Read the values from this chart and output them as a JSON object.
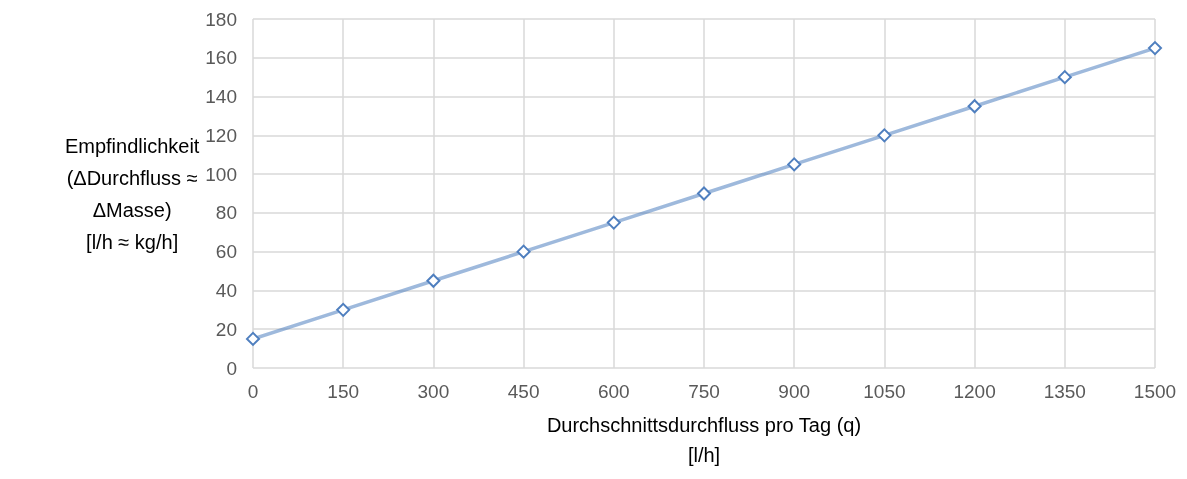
{
  "chart_data": {
    "type": "line",
    "xlabel": "Durchschnittsdurchfluss pro Tag (q)\n[l/h]",
    "ylabel": "Empfindlichkeit\n(ΔDurchfluss ≈\nΔMasse)\n[l/h ≈ kg/h]",
    "x": [
      0,
      150,
      300,
      450,
      600,
      750,
      900,
      1050,
      1200,
      1350,
      1500
    ],
    "series": [
      {
        "color": "#4f7fbf",
        "values": [
          15,
          30,
          45,
          60,
          75,
          90,
          105,
          120,
          135,
          150,
          165
        ]
      }
    ],
    "xlim": [
      0,
      1500
    ],
    "xticks": [
      0,
      150,
      300,
      450,
      600,
      750,
      900,
      1050,
      1200,
      1350,
      1500
    ],
    "ylim": [
      0,
      180
    ],
    "yticks": [
      0,
      20,
      40,
      60,
      80,
      100,
      120,
      140,
      160,
      180
    ],
    "grid": true,
    "marker": "diamond",
    "line_style": "solid"
  }
}
